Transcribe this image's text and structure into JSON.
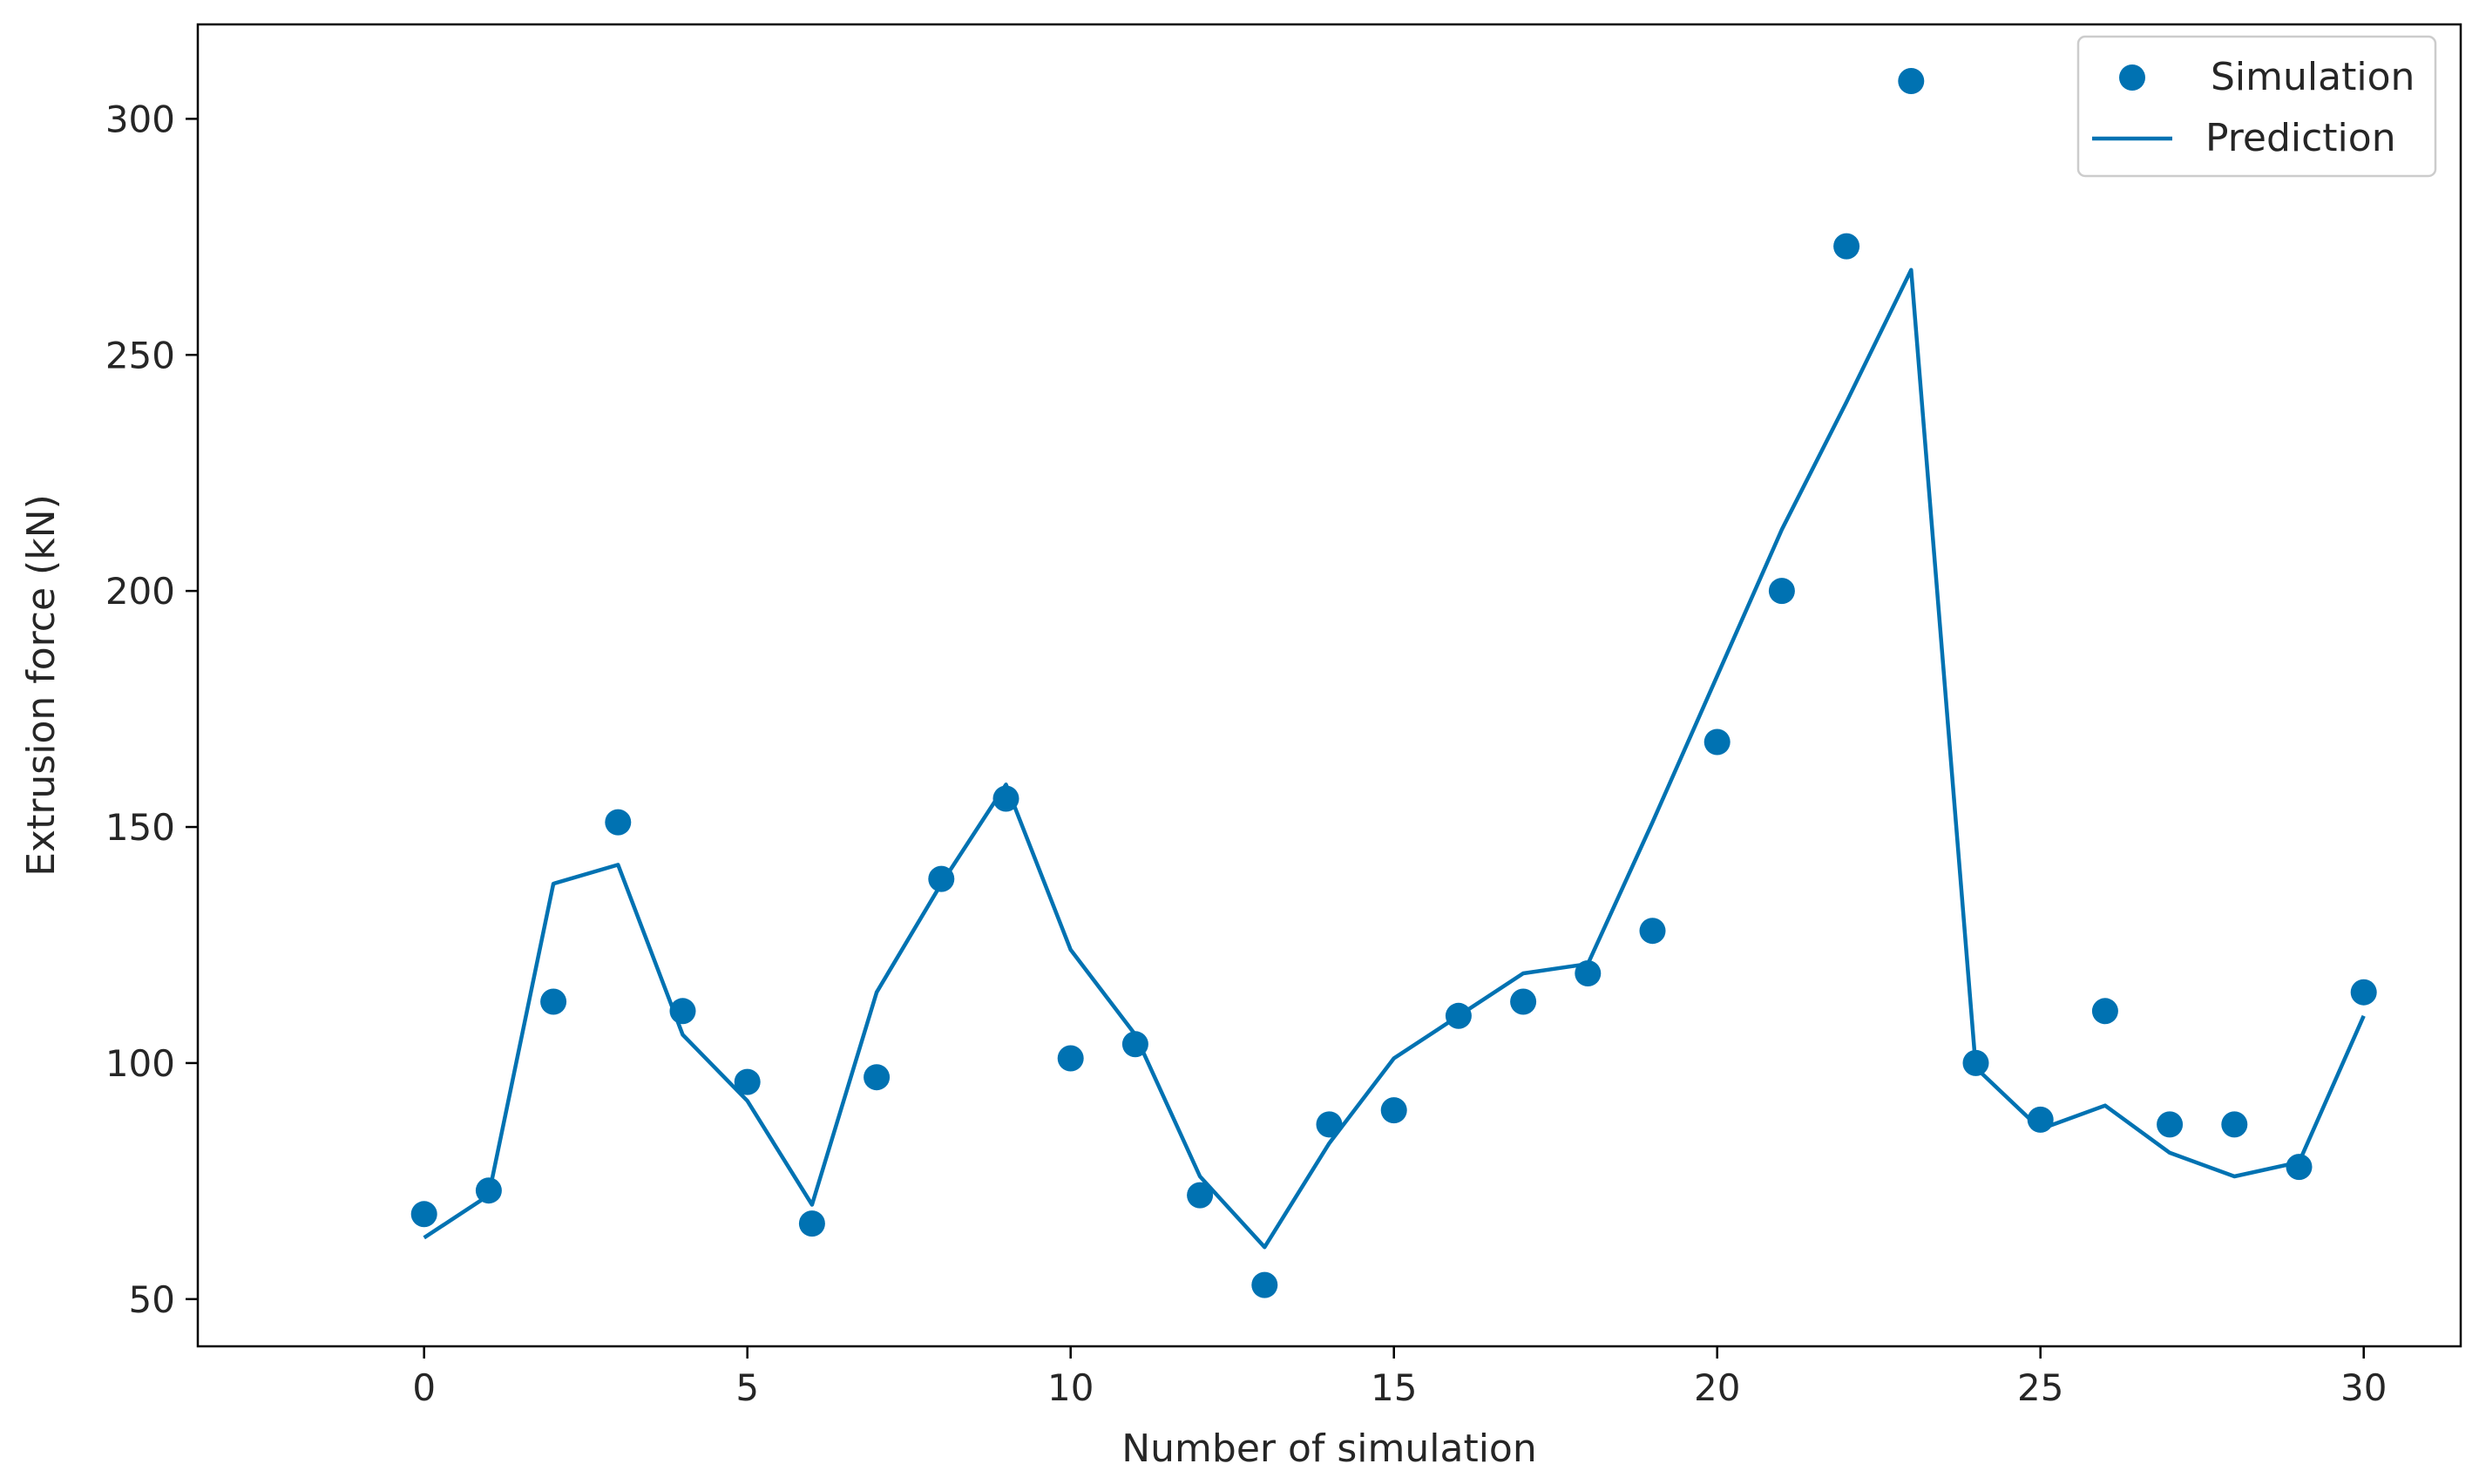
{
  "chart_data": {
    "type": "scatter+line",
    "title": "",
    "xlabel": "Number of simulation",
    "ylabel": "Extrusion force (kN)",
    "xlim": [
      -3.5,
      31.5
    ],
    "ylim": [
      40,
      320
    ],
    "xticks": [
      0,
      5,
      10,
      15,
      20,
      25,
      30
    ],
    "yticks": [
      50,
      100,
      150,
      200,
      250,
      300
    ],
    "grid": false,
    "legend_position": "top-right",
    "colors": {
      "series": "#0072b2",
      "axes": "#000000",
      "legend_border": "#cccccc"
    },
    "x": [
      0,
      1,
      2,
      3,
      4,
      5,
      6,
      7,
      8,
      9,
      10,
      11,
      12,
      13,
      14,
      15,
      16,
      17,
      18,
      19,
      20,
      21,
      22,
      23,
      24,
      25,
      26,
      27,
      28,
      29,
      30
    ],
    "series": [
      {
        "name": "Simulation",
        "kind": "scatter",
        "values": [
          68,
          73,
          113,
          151,
          111,
          96,
          66,
          97,
          139,
          156,
          101,
          104,
          72,
          53,
          87,
          90,
          110,
          113,
          119,
          128,
          168,
          200,
          273,
          308,
          100,
          88,
          111,
          87,
          87,
          78,
          115
        ]
      },
      {
        "name": "Prediction",
        "kind": "line",
        "values": [
          63,
          72,
          138,
          142,
          106,
          92,
          70,
          115,
          138,
          159,
          124,
          106,
          76,
          61,
          83,
          101,
          110,
          119,
          121,
          151,
          182,
          213,
          240,
          268,
          99,
          86,
          91,
          81,
          76,
          79,
          110
        ]
      }
    ]
  }
}
